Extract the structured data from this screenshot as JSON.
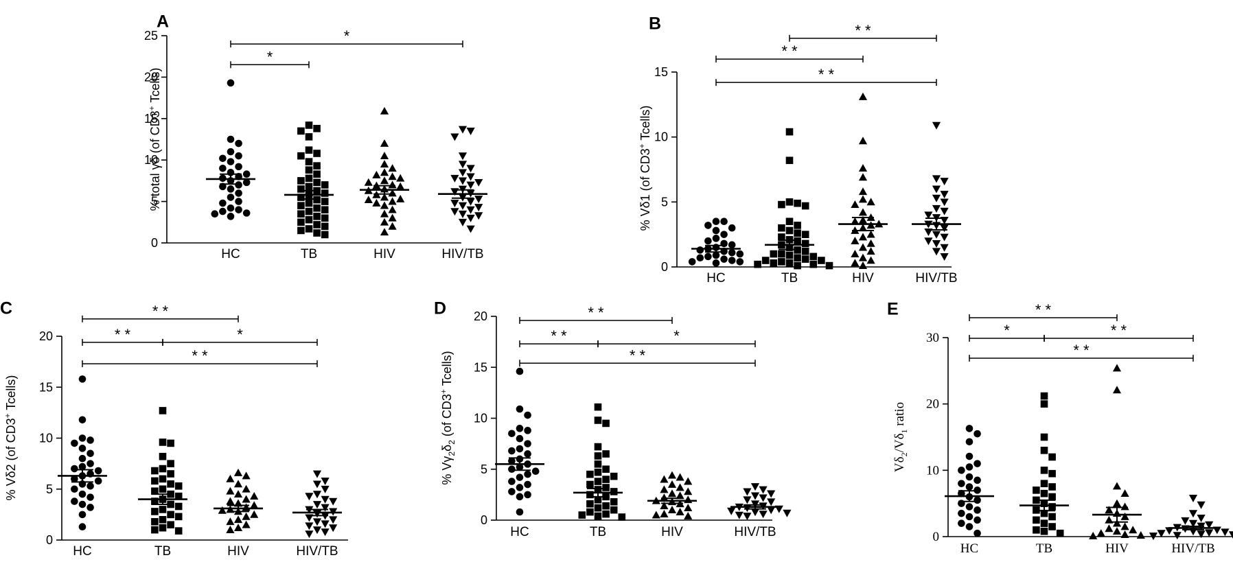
{
  "categories": [
    "HC",
    "TB",
    "HIV",
    "HIV/TB"
  ],
  "chart_data": [
    {
      "panel": "A",
      "type": "scatter",
      "ylabel": [
        "% total γδ (of CD3",
        "+",
        " Tcells)"
      ],
      "ylim": [
        0,
        25
      ],
      "yticks": [
        0,
        5,
        10,
        15,
        20,
        25
      ],
      "categories": [
        "HC",
        "TB",
        "HIV",
        "HIV/TB"
      ],
      "series": [
        {
          "name": "HC",
          "marker": "circle",
          "mean": 7.7,
          "sem": 0.6,
          "values": [
            19.3,
            12.5,
            12.0,
            11.0,
            10.5,
            10.2,
            9.8,
            9.2,
            9.0,
            8.5,
            8.3,
            8.0,
            7.8,
            7.5,
            7.3,
            7.0,
            6.8,
            6.5,
            6.0,
            5.5,
            5.0,
            4.8,
            4.2,
            3.8,
            3.6,
            3.2,
            3.5,
            4.0
          ]
        },
        {
          "name": "TB",
          "marker": "square",
          "mean": 5.8,
          "sem": 0.5,
          "values": [
            14.2,
            13.8,
            13.5,
            12.8,
            11.2,
            10.8,
            10.5,
            9.8,
            9.3,
            8.8,
            8.3,
            7.8,
            7.5,
            7.3,
            7.0,
            6.8,
            6.5,
            6.3,
            6.0,
            5.8,
            5.5,
            5.2,
            5.0,
            4.8,
            4.5,
            4.2,
            4.0,
            3.8,
            3.5,
            3.2,
            3.0,
            2.8,
            2.5,
            2.2,
            2.0,
            1.7,
            1.5,
            1.2,
            1.0
          ]
        },
        {
          "name": "HIV",
          "marker": "triangle",
          "mean": 6.4,
          "sem": 0.5,
          "values": [
            15.9,
            12.0,
            10.5,
            9.5,
            9.0,
            8.5,
            8.2,
            8.0,
            7.8,
            7.5,
            7.3,
            7.0,
            6.8,
            6.5,
            6.3,
            6.0,
            5.8,
            5.5,
            5.3,
            5.0,
            4.8,
            4.5,
            4.0,
            3.5,
            3.0,
            2.5,
            2.0,
            1.3,
            5.2,
            6.9
          ]
        },
        {
          "name": "HIV/TB",
          "marker": "tri-down",
          "mean": 5.9,
          "sem": 0.5,
          "values": [
            13.7,
            13.5,
            12.8,
            10.5,
            9.5,
            9.0,
            8.5,
            8.0,
            7.8,
            7.5,
            7.3,
            7.0,
            6.5,
            6.2,
            6.0,
            5.5,
            5.3,
            5.0,
            4.8,
            4.5,
            4.3,
            4.0,
            3.8,
            3.5,
            3.3,
            3.0,
            2.5,
            1.7
          ]
        }
      ],
      "brackets": [
        {
          "from": 0,
          "to": 1,
          "y": 21.5,
          "label": "*"
        },
        {
          "from": 0,
          "to": 3,
          "y": 24.0,
          "label": "*"
        }
      ]
    },
    {
      "panel": "B",
      "type": "scatter",
      "ylabel": [
        "% Vδ1 (of CD3",
        "+",
        " Tcells)"
      ],
      "ylim": [
        0,
        15
      ],
      "yticks": [
        0,
        5,
        10,
        15
      ],
      "categories": [
        "HC",
        "TB",
        "HIV",
        "HIV/TB"
      ],
      "series": [
        {
          "name": "HC",
          "marker": "circle",
          "mean": 1.4,
          "sem": 0.25,
          "values": [
            3.5,
            3.5,
            3.2,
            3.0,
            2.8,
            2.5,
            2.2,
            2.0,
            1.8,
            1.7,
            1.5,
            1.4,
            1.3,
            1.2,
            1.1,
            1.0,
            0.9,
            0.8,
            0.7,
            0.6,
            0.5,
            0.4,
            0.4,
            0.3
          ]
        },
        {
          "name": "TB",
          "marker": "square",
          "mean": 1.7,
          "sem": 0.35,
          "values": [
            10.4,
            8.2,
            5.0,
            4.9,
            4.8,
            4.7,
            3.5,
            3.2,
            3.0,
            2.8,
            2.5,
            2.3,
            2.0,
            1.8,
            1.7,
            1.5,
            1.3,
            1.2,
            1.0,
            1.0,
            0.9,
            0.8,
            0.7,
            0.6,
            0.5,
            0.5,
            0.4,
            0.3,
            0.3,
            0.2,
            0.2,
            0.1,
            0.1,
            2.6,
            2.1
          ]
        },
        {
          "name": "HIV",
          "marker": "triangle",
          "mean": 3.3,
          "sem": 0.5,
          "values": [
            13.1,
            9.7,
            7.6,
            6.9,
            5.8,
            5.2,
            5.0,
            4.8,
            4.2,
            3.8,
            3.6,
            3.5,
            3.3,
            3.2,
            3.0,
            2.8,
            2.5,
            2.3,
            2.0,
            1.8,
            1.5,
            1.2,
            1.0,
            0.7,
            0.5,
            0.3,
            0.1
          ]
        },
        {
          "name": "HIV/TB",
          "marker": "tri-down",
          "mean": 3.3,
          "sem": 0.45,
          "values": [
            10.9,
            6.8,
            6.6,
            6.0,
            5.6,
            5.3,
            5.0,
            4.5,
            4.3,
            4.0,
            3.8,
            3.6,
            3.3,
            3.2,
            3.0,
            2.7,
            2.5,
            2.3,
            2.0,
            1.8,
            1.5,
            1.2,
            0.8
          ]
        }
      ],
      "brackets": [
        {
          "from": 1,
          "to": 3,
          "y": 17.6,
          "label": "* *"
        },
        {
          "from": 0,
          "to": 2,
          "y": 16.0,
          "label": "* *"
        },
        {
          "from": 0,
          "to": 3,
          "y": 14.2,
          "label": "* *"
        }
      ]
    },
    {
      "panel": "C",
      "type": "scatter",
      "ylabel": [
        "% Vδ2 (of CD3",
        "+",
        " Tcells)"
      ],
      "ylim": [
        0,
        20
      ],
      "yticks": [
        0,
        5,
        10,
        15,
        20
      ],
      "categories": [
        "HC",
        "TB",
        "HIV",
        "HIV/TB"
      ],
      "series": [
        {
          "name": "HC",
          "marker": "circle",
          "mean": 6.3,
          "sem": 0.6,
          "values": [
            15.8,
            11.8,
            10.0,
            9.8,
            9.5,
            9.0,
            8.5,
            8.0,
            7.5,
            7.2,
            7.0,
            6.8,
            6.5,
            6.3,
            6.0,
            5.8,
            5.5,
            5.3,
            5.0,
            4.5,
            4.2,
            3.8,
            3.5,
            3.2,
            2.5,
            1.3
          ]
        },
        {
          "name": "TB",
          "marker": "square",
          "mean": 4.0,
          "sem": 0.5,
          "values": [
            12.7,
            9.6,
            9.5,
            8.2,
            7.5,
            7.0,
            6.8,
            6.5,
            6.0,
            5.8,
            5.5,
            5.3,
            5.0,
            4.8,
            4.5,
            4.3,
            4.0,
            3.8,
            3.5,
            3.3,
            3.0,
            2.8,
            2.5,
            2.3,
            2.0,
            1.8,
            1.5,
            1.2,
            1.0,
            0.9
          ]
        },
        {
          "name": "HIV",
          "marker": "triangle",
          "mean": 3.1,
          "sem": 0.3,
          "values": [
            6.6,
            6.3,
            6.0,
            5.5,
            5.0,
            4.8,
            4.5,
            4.3,
            4.0,
            3.8,
            3.6,
            3.4,
            3.2,
            3.0,
            2.9,
            2.8,
            2.5,
            2.3,
            2.0,
            1.8,
            1.5,
            1.2,
            1.0
          ]
        },
        {
          "name": "HIV/TB",
          "marker": "tri-down",
          "mean": 2.7,
          "sem": 0.3,
          "values": [
            6.5,
            5.8,
            5.5,
            5.0,
            4.5,
            4.3,
            4.0,
            3.8,
            3.5,
            3.2,
            3.0,
            2.8,
            2.6,
            2.4,
            2.2,
            2.0,
            1.8,
            1.6,
            1.4,
            1.2,
            1.0,
            0.8,
            0.6
          ]
        }
      ],
      "brackets": [
        {
          "from": 0,
          "to": 2,
          "y": 21.7,
          "label": "* *"
        },
        {
          "from": 0,
          "to": 1,
          "y": 19.4,
          "label": "* *"
        },
        {
          "from": 1,
          "to": 3,
          "y": 19.4,
          "label": "*"
        },
        {
          "from": 0,
          "to": 3,
          "y": 17.3,
          "label": "* *"
        }
      ]
    },
    {
      "panel": "D",
      "type": "scatter",
      "ylabel": [
        "% Vγ",
        "2",
        "δ",
        "2",
        " (of CD3",
        "+",
        " Tcells)"
      ],
      "ylim": [
        0,
        20
      ],
      "yticks": [
        0,
        5,
        10,
        15,
        20
      ],
      "categories": [
        "HC",
        "TB",
        "HIV",
        "HIV/TB"
      ],
      "series": [
        {
          "name": "HC",
          "marker": "circle",
          "mean": 5.5,
          "sem": 0.6,
          "values": [
            14.6,
            10.9,
            10.3,
            9.0,
            8.8,
            8.5,
            8.0,
            7.5,
            7.0,
            6.8,
            6.5,
            6.0,
            5.8,
            5.5,
            5.2,
            5.0,
            4.8,
            4.5,
            4.2,
            3.8,
            3.5,
            3.2,
            2.8,
            2.5,
            2.3,
            0.8
          ]
        },
        {
          "name": "TB",
          "marker": "square",
          "mean": 2.7,
          "sem": 0.4,
          "values": [
            11.1,
            9.8,
            9.5,
            7.2,
            6.5,
            6.3,
            5.5,
            5.0,
            4.7,
            4.5,
            4.3,
            4.0,
            3.8,
            3.5,
            3.2,
            3.0,
            2.8,
            2.5,
            2.3,
            2.0,
            1.8,
            1.6,
            1.4,
            1.2,
            1.0,
            0.8,
            0.6,
            0.5,
            0.4,
            0.3
          ]
        },
        {
          "name": "HIV",
          "marker": "triangle",
          "mean": 1.9,
          "sem": 0.25,
          "values": [
            4.4,
            4.2,
            4.0,
            3.8,
            3.5,
            3.2,
            3.0,
            2.8,
            2.6,
            2.4,
            2.2,
            2.0,
            1.9,
            1.8,
            1.6,
            1.4,
            1.2,
            1.0,
            0.8,
            0.6,
            0.5,
            0.4
          ]
        },
        {
          "name": "HIV/TB",
          "marker": "tri-down",
          "mean": 1.3,
          "sem": 0.2,
          "values": [
            3.3,
            3.0,
            2.8,
            2.6,
            2.4,
            2.2,
            2.0,
            1.8,
            1.6,
            1.4,
            1.3,
            1.2,
            1.1,
            1.0,
            0.9,
            0.8,
            0.7,
            0.6,
            0.5,
            0.4
          ]
        }
      ],
      "brackets": [
        {
          "from": 0,
          "to": 2,
          "y": 19.6,
          "label": "* *"
        },
        {
          "from": 0,
          "to": 1,
          "y": 17.3,
          "label": "* *"
        },
        {
          "from": 1,
          "to": 3,
          "y": 17.3,
          "label": "*"
        },
        {
          "from": 0,
          "to": 3,
          "y": 15.4,
          "label": "* *"
        }
      ]
    },
    {
      "panel": "E",
      "type": "scatter",
      "ylabel": [
        "Vδ",
        "2",
        "/Vδ",
        "1",
        " ratio"
      ],
      "ylim": [
        0,
        30
      ],
      "yticks": [
        0,
        10,
        20,
        30
      ],
      "categories": [
        "HC",
        "TB",
        "HIV",
        "HIV/TB"
      ],
      "series": [
        {
          "name": "HC",
          "marker": "circle",
          "mean": 6.1,
          "sem": 0.8,
          "values": [
            16.3,
            15.5,
            14.3,
            12.1,
            11.0,
            10.5,
            10.0,
            9.0,
            8.5,
            8.0,
            7.5,
            7.0,
            6.5,
            6.0,
            5.5,
            5.0,
            4.5,
            4.0,
            3.5,
            3.0,
            2.5,
            2.0,
            1.5,
            0.5
          ]
        },
        {
          "name": "TB",
          "marker": "square",
          "mean": 4.7,
          "sem": 0.8,
          "values": [
            21.2,
            20.0,
            15.0,
            13.0,
            12.0,
            10.0,
            9.5,
            8.0,
            7.5,
            7.0,
            6.5,
            6.0,
            5.5,
            5.0,
            4.5,
            4.0,
            3.5,
            3.0,
            2.5,
            2.0,
            1.5,
            1.0,
            0.8,
            0.5
          ]
        },
        {
          "name": "HIV",
          "marker": "triangle",
          "mean": 3.3,
          "sem": 1.1,
          "values": [
            25.4,
            22.1,
            7.6,
            6.5,
            5.0,
            4.5,
            4.0,
            3.5,
            3.0,
            2.5,
            2.0,
            1.5,
            1.2,
            1.0,
            0.8,
            0.5,
            0.3,
            0.2,
            0.1
          ]
        },
        {
          "name": "HIV/TB",
          "marker": "tri-down",
          "mean": 1.3,
          "sem": 0.25,
          "values": [
            5.8,
            4.8,
            3.5,
            2.8,
            2.4,
            2.0,
            1.8,
            1.6,
            1.4,
            1.2,
            1.0,
            0.9,
            0.8,
            0.7,
            0.6,
            0.5,
            0.4,
            0.3,
            0.2,
            0.1
          ]
        }
      ],
      "brackets": [
        {
          "from": 0,
          "to": 2,
          "y": 33.0,
          "label": "* *"
        },
        {
          "from": 0,
          "to": 1,
          "y": 29.9,
          "label": "*"
        },
        {
          "from": 1,
          "to": 3,
          "y": 29.9,
          "label": "* *"
        },
        {
          "from": 0,
          "to": 3,
          "y": 26.9,
          "label": "* *"
        }
      ]
    }
  ]
}
